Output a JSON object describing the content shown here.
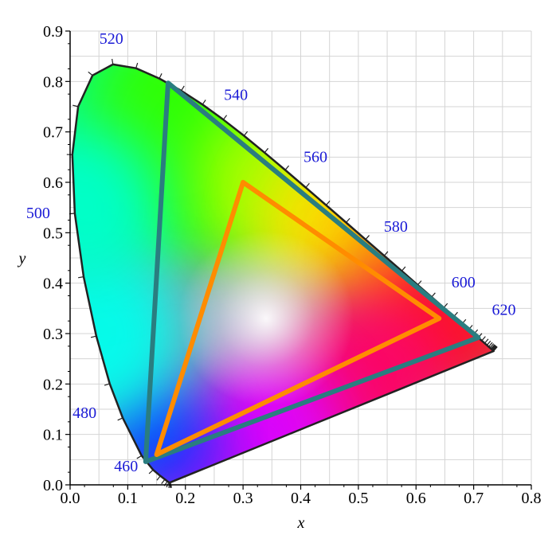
{
  "chart_data": {
    "type": "scatter",
    "title": "",
    "xlabel": "x",
    "ylabel": "y",
    "xlim": [
      0.0,
      0.8
    ],
    "ylim": [
      0.0,
      0.9
    ],
    "grid": true,
    "x_ticks": [
      "0.0",
      "0.1",
      "0.2",
      "0.3",
      "0.4",
      "0.5",
      "0.6",
      "0.7",
      "0.8"
    ],
    "y_ticks": [
      "0.0",
      "0.1",
      "0.2",
      "0.3",
      "0.4",
      "0.5",
      "0.6",
      "0.7",
      "0.8",
      "0.9"
    ],
    "spectral_locus": {
      "x": [
        0.1741,
        0.1738,
        0.1733,
        0.1726,
        0.1714,
        0.1689,
        0.1644,
        0.1566,
        0.144,
        0.1241,
        0.0913,
        0.0687,
        0.0454,
        0.0235,
        0.0082,
        0.0039,
        0.0139,
        0.0389,
        0.0743,
        0.1142,
        0.1547,
        0.1929,
        0.2296,
        0.2658,
        0.3016,
        0.3373,
        0.3731,
        0.4087,
        0.4441,
        0.4788,
        0.5125,
        0.5448,
        0.5752,
        0.6029,
        0.627,
        0.6482,
        0.6658,
        0.6801,
        0.6915,
        0.7006,
        0.7079,
        0.714,
        0.719,
        0.723,
        0.726,
        0.7283,
        0.73,
        0.7311,
        0.732,
        0.7327,
        0.7334,
        0.734,
        0.7344,
        0.7346,
        0.7347
      ],
      "y": [
        0.005,
        0.0049,
        0.0048,
        0.0048,
        0.0051,
        0.0069,
        0.0109,
        0.0177,
        0.0297,
        0.0578,
        0.1327,
        0.2007,
        0.295,
        0.4127,
        0.5384,
        0.6548,
        0.7502,
        0.812,
        0.8338,
        0.8262,
        0.8059,
        0.7816,
        0.7543,
        0.7243,
        0.6923,
        0.6589,
        0.6245,
        0.5896,
        0.5547,
        0.5202,
        0.4866,
        0.4544,
        0.4242,
        0.3965,
        0.3725,
        0.3514,
        0.334,
        0.3197,
        0.3083,
        0.2993,
        0.292,
        0.2859,
        0.2809,
        0.277,
        0.274,
        0.2717,
        0.27,
        0.2689,
        0.268,
        0.2673,
        0.2666,
        0.266,
        0.2656,
        0.2654,
        0.2653
      ]
    },
    "wavelength_labels": [
      {
        "text": "460",
        "x": 0.144,
        "y": 0.0297
      },
      {
        "text": "480",
        "x": 0.0913,
        "y": 0.1327
      },
      {
        "text": "500",
        "x": 0.0082,
        "y": 0.5384
      },
      {
        "text": "520",
        "x": 0.0743,
        "y": 0.8338
      },
      {
        "text": "540",
        "x": 0.2296,
        "y": 0.7543
      },
      {
        "text": "560",
        "x": 0.3731,
        "y": 0.6245
      },
      {
        "text": "580",
        "x": 0.5125,
        "y": 0.4866
      },
      {
        "text": "600",
        "x": 0.627,
        "y": 0.3725
      },
      {
        "text": "620",
        "x": 0.6915,
        "y": 0.3083
      }
    ],
    "series": [
      {
        "name": "",
        "type": "triangle",
        "color": "#2a7d80",
        "x": [
          0.708,
          0.17,
          0.131
        ],
        "y": [
          0.292,
          0.797,
          0.046
        ]
      },
      {
        "name": "",
        "type": "triangle",
        "color": "#ff8c00",
        "x": [
          0.64,
          0.3,
          0.15
        ],
        "y": [
          0.33,
          0.6,
          0.06
        ]
      }
    ],
    "colors": {
      "label": "#1a1ad6",
      "locus_outline": "#222222",
      "grid": "#d4d4d4"
    }
  }
}
